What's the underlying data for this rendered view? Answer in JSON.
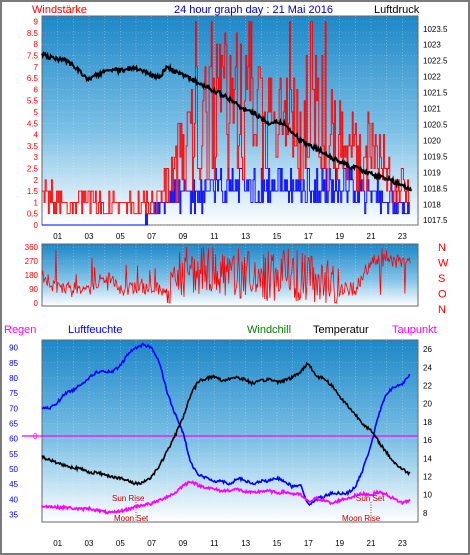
{
  "header": {
    "left_label": "Windstärke",
    "title": "24 hour graph day : 21 Mai 2016",
    "right_label": "Luftdruck"
  },
  "colors": {
    "wind": "#ff0000",
    "gust_blue": "#0000ff",
    "pressure": "#000000",
    "humidity": "#0000ff",
    "windchill": "#008000",
    "temperature": "#000000",
    "dewpoint": "#ff00ff",
    "rain": "#ff00ff",
    "sun_label": "#c00000",
    "bg_top": "#1f8ccb",
    "bg_bottom": "#ffffff"
  },
  "lower_legend": {
    "rain": "Regen",
    "humidity": "Luftfeuchte",
    "windchill": "Windchill",
    "temperature": "Temperatur",
    "dewpoint": "Taupunkt"
  },
  "annotations": {
    "sun_rise": "Sun Rise",
    "moon_set": "Moon Set",
    "sun_set": "Sun Set",
    "moon_rise": "Moon Rise",
    "rain_zero": "0"
  },
  "chart_data": [
    {
      "type": "line",
      "name_ref": "wind_pressure",
      "x_ticks": [
        "01",
        "03",
        "05",
        "07",
        "09",
        "11",
        "13",
        "15",
        "17",
        "19",
        "21",
        "23"
      ],
      "y_left_ticks": [
        "0",
        "0.5",
        "1",
        "1.5",
        "2",
        "2.5",
        "3",
        "3.5",
        "4",
        "4.5",
        "5",
        "5.5",
        "6",
        "6.5",
        "7",
        "7.5",
        "8",
        "8.5",
        "9"
      ],
      "y_right_ticks": [
        "1017.5",
        "1018",
        "1018.5",
        "1019",
        "1019.5",
        "1020",
        "1020.5",
        "1021",
        "1021.5",
        "1022",
        "1022.5",
        "1023",
        "1023.5"
      ],
      "ylim_left": [
        0,
        9.25
      ],
      "ylim_right": [
        1017.35,
        1023.9
      ],
      "xlim": [
        0,
        24
      ],
      "pressure": {
        "x": [
          0,
          0.5,
          1,
          1.5,
          2,
          2.5,
          3,
          3.5,
          4,
          4.5,
          5,
          5.5,
          6,
          6.5,
          7,
          7.5,
          8,
          8.5,
          9,
          9.5,
          10,
          10.5,
          11,
          11.5,
          12,
          12.5,
          13,
          13.5,
          14,
          14.5,
          15,
          15.5,
          16,
          16.5,
          17,
          17.5,
          18,
          18.5,
          19,
          19.5,
          20,
          20.5,
          21,
          21.5,
          22,
          22.5,
          23,
          23.5
        ],
        "y": [
          1022.7,
          1022.6,
          1022.55,
          1022.5,
          1022.35,
          1022.1,
          1021.9,
          1022.05,
          1022.15,
          1022.2,
          1022.2,
          1022.25,
          1022.25,
          1022.2,
          1022.05,
          1022.0,
          1022.3,
          1022.15,
          1022.05,
          1021.95,
          1021.8,
          1021.7,
          1021.55,
          1021.45,
          1021.3,
          1021.1,
          1020.95,
          1020.85,
          1020.7,
          1020.55,
          1020.6,
          1020.5,
          1020.25,
          1020.0,
          1019.85,
          1019.75,
          1019.6,
          1019.45,
          1019.35,
          1019.2,
          1019.15,
          1019.05,
          1018.95,
          1018.85,
          1018.8,
          1018.7,
          1018.6,
          1018.45
        ]
      },
      "wind_speed_profile": {
        "x": [
          0,
          1,
          2,
          3,
          4,
          5,
          6,
          7,
          8,
          9,
          10,
          11,
          12,
          13,
          14,
          15,
          16,
          17,
          18,
          19,
          20,
          21,
          22,
          23,
          23.5
        ],
        "y": [
          1.5,
          1.5,
          1.0,
          1.5,
          1.0,
          1.0,
          1.0,
          1.5,
          2.0,
          4.0,
          5.5,
          6.0,
          6.5,
          6.5,
          5.5,
          5.5,
          5.5,
          6.5,
          5.5,
          4.5,
          4.0,
          3.5,
          3.0,
          2.0,
          1.5
        ]
      },
      "gust_profile": {
        "x": [
          0,
          2,
          4,
          6,
          7,
          8,
          9,
          10,
          11,
          12,
          13,
          14,
          15,
          16,
          17,
          18,
          19,
          20,
          21,
          22,
          23,
          23.5
        ],
        "y": [
          0,
          0,
          0,
          0,
          0.5,
          1.5,
          1.5,
          1.5,
          2.0,
          2.0,
          2.0,
          2.0,
          2.0,
          2.0,
          2.0,
          2.0,
          2.0,
          2.0,
          1.5,
          1.5,
          1.0,
          0.5
        ]
      }
    },
    {
      "type": "scatter",
      "name_ref": "wind_direction",
      "y_left_ticks": [
        "0",
        "90",
        "180",
        "270",
        "360"
      ],
      "y_right_ticks": [
        "N",
        "W",
        "S",
        "O",
        "N"
      ],
      "ylim": [
        0,
        360
      ],
      "xlim": [
        0,
        24
      ],
      "profile": {
        "x": [
          0,
          1,
          2,
          3,
          4,
          5,
          6,
          7,
          8,
          9,
          10,
          11,
          12,
          13,
          14,
          15,
          16,
          17,
          18,
          19,
          20,
          21,
          22,
          23,
          23.5
        ],
        "y": [
          180,
          90,
          90,
          90,
          180,
          90,
          90,
          90,
          90,
          200,
          200,
          200,
          200,
          180,
          180,
          180,
          180,
          180,
          90,
          90,
          90,
          270,
          270,
          270,
          270
        ]
      }
    },
    {
      "type": "line",
      "name_ref": "temp_humidity",
      "y_left_ticks": [
        "35",
        "40",
        "45",
        "50",
        "55",
        "60",
        "65",
        "70",
        "75",
        "80",
        "85",
        "90"
      ],
      "y_right_ticks": [
        "8",
        "10",
        "12",
        "14",
        "16",
        "18",
        "20",
        "22",
        "24",
        "26"
      ],
      "ylim_left": [
        32.5,
        92.5
      ],
      "ylim_right": [
        7,
        27
      ],
      "xlim": [
        0,
        24
      ],
      "humidity": {
        "x": [
          0,
          0.5,
          1,
          1.5,
          2,
          2.5,
          3,
          3.5,
          4,
          4.5,
          5,
          5.5,
          6,
          6.5,
          7,
          7.5,
          8,
          8.5,
          9,
          9.5,
          10,
          10.5,
          11,
          11.5,
          12,
          12.5,
          13,
          13.5,
          14,
          14.5,
          15,
          15.5,
          16,
          16.5,
          17,
          17.5,
          18,
          18.5,
          19,
          19.5,
          20,
          20.5,
          21,
          21.5,
          22,
          22.5,
          23,
          23.5
        ],
        "y": [
          70,
          70,
          72,
          75,
          76,
          78,
          80,
          82,
          82,
          82,
          84,
          88,
          90,
          91,
          90,
          85,
          75,
          68,
          62,
          52,
          48,
          47,
          46,
          46,
          45,
          47,
          46,
          45,
          46,
          46,
          47,
          46,
          44,
          45,
          38,
          40,
          41,
          42,
          42,
          42,
          44,
          50,
          58,
          68,
          75,
          77,
          78,
          81
        ]
      },
      "temperature": {
        "x": [
          0,
          0.5,
          1,
          1.5,
          2,
          2.5,
          3,
          3.5,
          4,
          4.5,
          5,
          5.5,
          6,
          6.5,
          7,
          7.5,
          8,
          8.5,
          9,
          9.5,
          10,
          10.5,
          11,
          11.5,
          12,
          12.5,
          13,
          13.5,
          14,
          14.5,
          15,
          15.5,
          16,
          16.5,
          17,
          17.5,
          18,
          18.5,
          19,
          19.5,
          20,
          20.5,
          21,
          21.5,
          22,
          22.5,
          23,
          23.5
        ],
        "y": [
          14.2,
          13.8,
          13.5,
          13.2,
          13.0,
          12.8,
          12.5,
          12.4,
          12.2,
          12.0,
          11.8,
          11.5,
          11.2,
          11.4,
          12.0,
          13.2,
          14.8,
          16.5,
          18.5,
          21.0,
          22.5,
          22.8,
          23.0,
          22.5,
          22.8,
          22.9,
          22.6,
          22.2,
          22.5,
          22.7,
          22.4,
          22.6,
          22.9,
          23.5,
          24.5,
          23.0,
          22.8,
          22.0,
          20.8,
          19.8,
          18.8,
          17.8,
          17.0,
          15.8,
          14.6,
          13.5,
          12.8,
          12.3
        ]
      },
      "dewpoint": {
        "x": [
          0,
          0.5,
          1,
          1.5,
          2,
          2.5,
          3,
          3.5,
          4,
          4.5,
          5,
          5.5,
          6,
          6.5,
          7,
          7.5,
          8,
          8.5,
          9,
          9.5,
          10,
          10.5,
          11,
          11.5,
          12,
          12.5,
          13,
          13.5,
          14,
          14.5,
          15,
          15.5,
          16,
          16.5,
          17,
          17.5,
          18,
          18.5,
          19,
          19.5,
          20,
          20.5,
          21,
          21.5,
          22,
          22.5,
          23,
          23.5
        ],
        "y": [
          8.8,
          8.7,
          8.6,
          8.6,
          8.5,
          8.4,
          8.5,
          8.3,
          8.1,
          8.0,
          8.2,
          8.4,
          8.7,
          8.9,
          9.0,
          9.4,
          9.8,
          10.2,
          11.0,
          11.5,
          11.0,
          10.8,
          10.6,
          10.4,
          10.5,
          10.6,
          10.3,
          10.2,
          10.4,
          10.4,
          10.2,
          10.3,
          10.1,
          10.0,
          9.2,
          9.6,
          9.4,
          9.0,
          9.4,
          9.6,
          9.9,
          10.1,
          10.0,
          10.3,
          10.0,
          9.5,
          9.1,
          9.4
        ]
      },
      "rain_value": 0
    }
  ]
}
